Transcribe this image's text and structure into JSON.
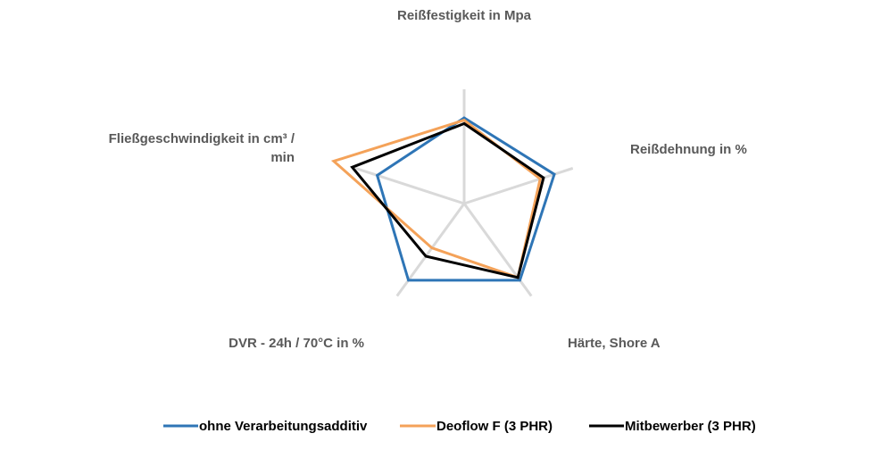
{
  "chart_data": {
    "type": "radar",
    "axes": [
      "Reißfestigkeit in Mpa",
      "Reißdehnung in %",
      "Härte, Shore A",
      "DVR - 24h / 70°C in %",
      "Fließgeschwindigkeit in cm³ / min"
    ],
    "axis_label_lines": [
      [
        "Reißfestigkeit in Mpa"
      ],
      [
        "Reißdehnung in %"
      ],
      [
        "Härte, Shore A"
      ],
      [
        "DVR - 24h / 70°C in %"
      ],
      [
        "Fließgeschwindigkeit in cm³ /",
        "min"
      ]
    ],
    "rlim": [
      0,
      1
    ],
    "grid": true,
    "legend_position": "bottom",
    "series": [
      {
        "name": "ohne Verarbeitungsadditiv",
        "color": "#2E75B6",
        "values": [
          0.75,
          0.83,
          0.83,
          0.83,
          0.8
        ]
      },
      {
        "name": "Deoflow F  (3 PHR)",
        "color": "#F4A259",
        "values": [
          0.73,
          0.7,
          0.8,
          0.48,
          1.2
        ]
      },
      {
        "name": "Mitbewerber (3 PHR)",
        "color": "#000000",
        "values": [
          0.7,
          0.73,
          0.8,
          0.57,
          1.03
        ]
      }
    ]
  }
}
